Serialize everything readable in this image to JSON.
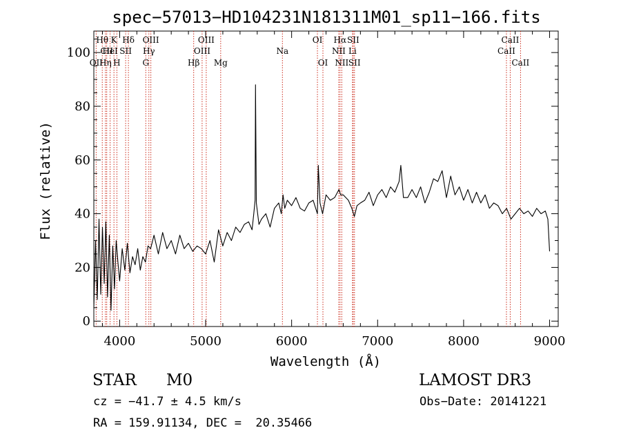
{
  "chart_data": {
    "type": "line",
    "title": "spec−57013−HD104231N181311M01_sp11−166.fits",
    "xlabel": "Wavelength (Å)",
    "ylabel": "Flux (relative)",
    "xlim": [
      3700,
      9100
    ],
    "ylim": [
      -2,
      108
    ],
    "x_ticks": [
      4000,
      5000,
      6000,
      7000,
      8000,
      9000
    ],
    "y_ticks": [
      0,
      20,
      40,
      60,
      80,
      100
    ],
    "grid": false,
    "colors": {
      "line": "#000000",
      "marker": "#cc2a1a",
      "axis": "#000000"
    },
    "series": [
      {
        "name": "flux",
        "x": [
          3700,
          3720,
          3740,
          3760,
          3780,
          3800,
          3820,
          3840,
          3860,
          3880,
          3900,
          3920,
          3940,
          3960,
          3980,
          4000,
          4030,
          4060,
          4090,
          4120,
          4150,
          4180,
          4210,
          4240,
          4270,
          4300,
          4330,
          4360,
          4400,
          4450,
          4500,
          4550,
          4600,
          4650,
          4700,
          4750,
          4800,
          4850,
          4900,
          4950,
          5000,
          5050,
          5100,
          5150,
          5200,
          5250,
          5300,
          5350,
          5400,
          5450,
          5500,
          5540,
          5560,
          5575,
          5580,
          5590,
          5620,
          5650,
          5700,
          5750,
          5800,
          5850,
          5880,
          5900,
          5920,
          5950,
          6000,
          6050,
          6100,
          6150,
          6200,
          6250,
          6300,
          6310,
          6330,
          6360,
          6400,
          6450,
          6500,
          6550,
          6570,
          6600,
          6630,
          6660,
          6700,
          6730,
          6760,
          6800,
          6850,
          6900,
          6950,
          7000,
          7050,
          7100,
          7150,
          7200,
          7250,
          7270,
          7300,
          7350,
          7400,
          7450,
          7500,
          7550,
          7600,
          7650,
          7700,
          7750,
          7800,
          7850,
          7900,
          7950,
          8000,
          8050,
          8100,
          8150,
          8200,
          8250,
          8300,
          8350,
          8400,
          8450,
          8500,
          8550,
          8600,
          8650,
          8700,
          8750,
          8800,
          8850,
          8900,
          8950,
          8980,
          9000
        ],
        "values": [
          5,
          30,
          8,
          38,
          10,
          35,
          14,
          37,
          9,
          32,
          4,
          28,
          12,
          30,
          22,
          15,
          27,
          19,
          29,
          18,
          24,
          21,
          27,
          19,
          24,
          22,
          28,
          27,
          32,
          25,
          33,
          27,
          30,
          25,
          32,
          27,
          29,
          26,
          28,
          27,
          25,
          30,
          22,
          34,
          28,
          33,
          30,
          35,
          33,
          36,
          37,
          34,
          40,
          45,
          88,
          44,
          36,
          38,
          40,
          35,
          42,
          44,
          40,
          47,
          42,
          45,
          43,
          46,
          42,
          41,
          44,
          45,
          40,
          58,
          44,
          40,
          47,
          45,
          46,
          49,
          47,
          47,
          46,
          45,
          42,
          39,
          43,
          44,
          45,
          48,
          43,
          47,
          49,
          46,
          50,
          48,
          52,
          58,
          46,
          46,
          49,
          46,
          50,
          44,
          48,
          53,
          52,
          56,
          46,
          54,
          47,
          50,
          45,
          49,
          44,
          48,
          44,
          47,
          42,
          44,
          43,
          40,
          42,
          38,
          40,
          42,
          40,
          41,
          39,
          42,
          40,
          41,
          38,
          26
        ]
      }
    ],
    "markers": [
      {
        "id": "oii",
        "label": "OII",
        "x": 3727,
        "row": 3
      },
      {
        "id": "h-theta",
        "label": "Hθ",
        "x": 3798,
        "row": 1
      },
      {
        "id": "cii",
        "label": "CII",
        "x": 3850,
        "row": 2
      },
      {
        "id": "h-eta",
        "label": "Hη",
        "x": 3835,
        "row": 3
      },
      {
        "id": "hei",
        "label": "HeI",
        "x": 3889,
        "row": 2
      },
      {
        "id": "k",
        "label": "K",
        "x": 3934,
        "row": 1
      },
      {
        "id": "h",
        "label": "H",
        "x": 3968,
        "row": 3
      },
      {
        "id": "sii-a",
        "label": "SII",
        "x": 4070,
        "row": 2
      },
      {
        "id": "h-delta",
        "label": "Hδ",
        "x": 4102,
        "row": 1
      },
      {
        "id": "oiii-a",
        "label": "OIII",
        "x": 4363,
        "row": 1
      },
      {
        "id": "h-gamma",
        "label": "Hγ",
        "x": 4340,
        "row": 2
      },
      {
        "id": "g",
        "label": "G",
        "x": 4304,
        "row": 3
      },
      {
        "id": "h-beta",
        "label": "Hβ",
        "x": 4861,
        "row": 3
      },
      {
        "id": "oiii-b",
        "label": "OIII",
        "x": 5007,
        "row": 1
      },
      {
        "id": "oiii-c",
        "label": "OIII",
        "x": 4959,
        "row": 2
      },
      {
        "id": "mg",
        "label": "Mg",
        "x": 5175,
        "row": 3
      },
      {
        "id": "na",
        "label": "Na",
        "x": 5893,
        "row": 2
      },
      {
        "id": "oi-a",
        "label": "OI",
        "x": 6300,
        "row": 1
      },
      {
        "id": "oi-b",
        "label": "OI",
        "x": 6364,
        "row": 3
      },
      {
        "id": "h-alpha",
        "label": "Hα",
        "x": 6563,
        "row": 1
      },
      {
        "id": "nii-a",
        "label": "NII",
        "x": 6548,
        "row": 2
      },
      {
        "id": "nii-b",
        "label": "NII",
        "x": 6583,
        "row": 3
      },
      {
        "id": "sii-b",
        "label": "SII",
        "x": 6716,
        "row": 1
      },
      {
        "id": "li",
        "label": "Li",
        "x": 6708,
        "row": 2
      },
      {
        "id": "sii-c",
        "label": "SII",
        "x": 6731,
        "row": 3
      },
      {
        "id": "caii-a",
        "label": "CaII",
        "x": 8542,
        "row": 1
      },
      {
        "id": "caii-b",
        "label": "CaII",
        "x": 8498,
        "row": 2
      },
      {
        "id": "caii-c",
        "label": "CaII",
        "x": 8662,
        "row": 3
      }
    ]
  },
  "info": {
    "object_class": "STAR",
    "subclass": "M0",
    "survey": "LAMOST DR3",
    "cz": "cz = −41.7 ± 4.5 km/s",
    "obs_date": "Obs−Date: 20141221",
    "coords": "RA = 159.91134, DEC =  20.35466"
  }
}
